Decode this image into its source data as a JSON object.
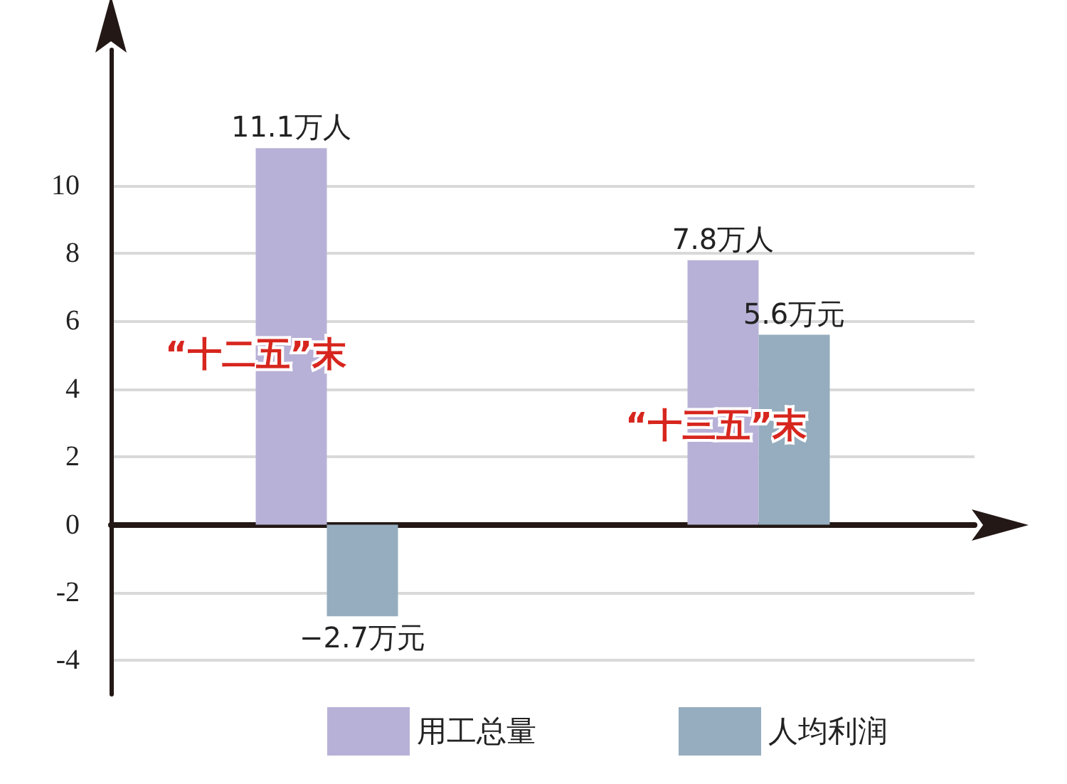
{
  "chart_data": {
    "type": "bar",
    "categories": [
      "“十二五”末",
      "“十三五”末"
    ],
    "series": [
      {
        "name": "用工总量",
        "color": "#b8b1d7",
        "values": [
          11.1,
          7.8
        ],
        "value_labels": [
          "11.1万人",
          "7.8万人"
        ]
      },
      {
        "name": "人均利润",
        "color": "#95adbe",
        "values": [
          -2.7,
          5.6
        ],
        "value_labels": [
          "−2.7万元",
          "5.6万元"
        ]
      }
    ],
    "ylim": [
      -5,
      14
    ],
    "yticks": [
      -4,
      -2,
      0,
      2,
      4,
      6,
      8,
      10
    ],
    "grid": "y",
    "legend": "bottom"
  }
}
